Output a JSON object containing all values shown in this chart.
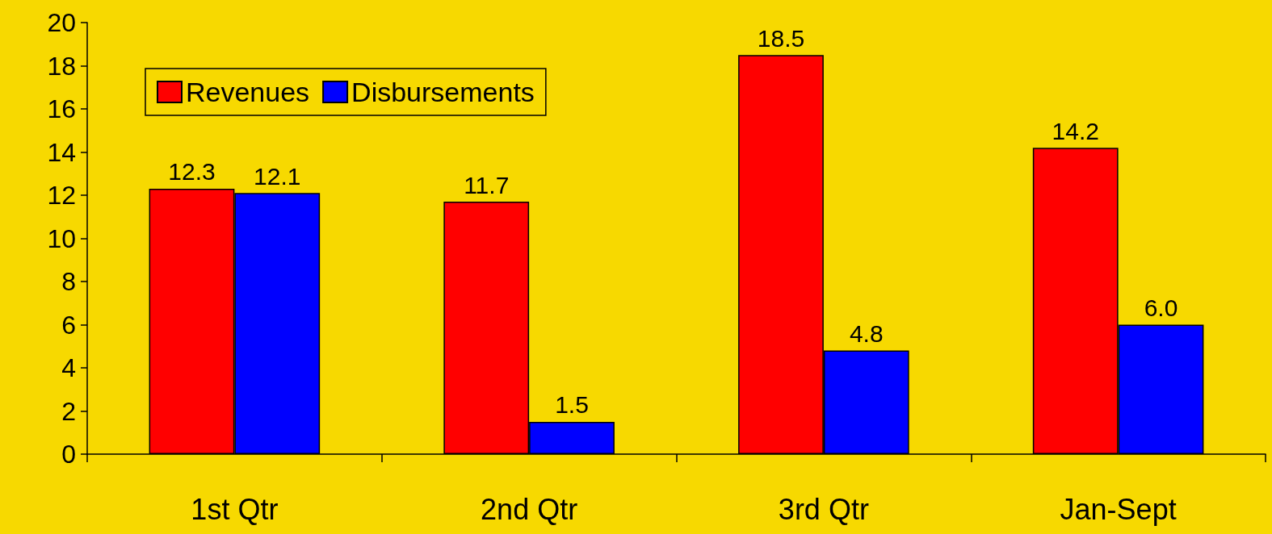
{
  "chart_data": {
    "type": "bar",
    "categories": [
      "1st Qtr",
      "2nd Qtr",
      "3rd Qtr",
      "Jan-Sept"
    ],
    "series": [
      {
        "name": "Revenues",
        "color": "#ff0000",
        "values": [
          12.3,
          11.7,
          18.5,
          14.2
        ],
        "value_labels": [
          "12.3",
          "11.7",
          "18.5",
          "14.2"
        ]
      },
      {
        "name": "Disbursements",
        "color": "#0000ff",
        "values": [
          12.1,
          1.5,
          4.8,
          6.0
        ],
        "value_labels": [
          "12.1",
          "1.5",
          "4.8",
          "6.0"
        ]
      }
    ],
    "ylim": [
      0,
      20
    ],
    "yticks": [
      0,
      2,
      4,
      6,
      8,
      10,
      12,
      14,
      16,
      18,
      20
    ],
    "grid": false,
    "legend": "top left"
  }
}
